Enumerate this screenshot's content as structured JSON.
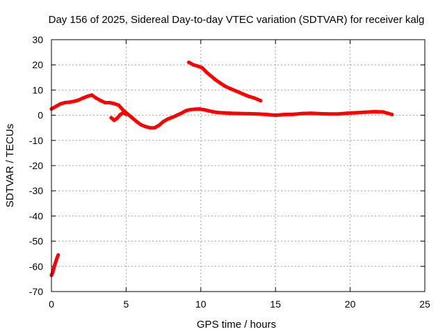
{
  "chart_data": {
    "type": "line",
    "title": "Day 156 of 2025, Sidereal Day-to-day VTEC variation (SDTVAR) for receiver kalg",
    "xlabel": "GPS time / hours",
    "ylabel": "SDTVAR / TECUs",
    "xlim": [
      0,
      25
    ],
    "ylim": [
      -70,
      30
    ],
    "xticks": [
      0,
      5,
      10,
      15,
      20,
      25
    ],
    "yticks": [
      -70,
      -60,
      -50,
      -40,
      -30,
      -20,
      -10,
      0,
      10,
      20,
      30
    ],
    "grid": true,
    "series_color": "#ff0000",
    "series": [
      {
        "name": "early-segment",
        "x": [
          0.0,
          0.08,
          0.15,
          0.22,
          0.3,
          0.38,
          0.45
        ],
        "y": [
          -63.5,
          -62.5,
          -61,
          -59.5,
          -58,
          -56.5,
          -55.5
        ]
      },
      {
        "name": "main-trace",
        "x": [
          0.0,
          0.3,
          0.6,
          0.9,
          1.2,
          1.5,
          1.8,
          2.1,
          2.4,
          2.7,
          3.0,
          3.3,
          3.6,
          3.9,
          4.2,
          4.5,
          4.8,
          5.1,
          5.4,
          5.7,
          6.0,
          6.3,
          6.6,
          6.9,
          7.2,
          7.5,
          7.8,
          8.1,
          8.4,
          8.7,
          9.0,
          9.3,
          9.6,
          9.9,
          10.2,
          10.5,
          10.8,
          11.1,
          11.4,
          12.0,
          12.6,
          13.2,
          13.8,
          14.4,
          15.0,
          15.6,
          16.2,
          16.8,
          17.4,
          18.0,
          18.6,
          19.2,
          19.8,
          20.4,
          21.0,
          21.6,
          22.2,
          22.8
        ],
        "y": [
          2.5,
          3.5,
          4.5,
          5.0,
          5.2,
          5.5,
          6.0,
          6.8,
          7.5,
          8.0,
          6.8,
          5.8,
          5.0,
          5.0,
          4.6,
          4.0,
          2.0,
          0.5,
          -1.0,
          -2.5,
          -3.8,
          -4.5,
          -5.0,
          -5.0,
          -4.0,
          -2.5,
          -1.5,
          -0.8,
          0.0,
          0.8,
          1.8,
          2.2,
          2.4,
          2.5,
          2.2,
          1.8,
          1.4,
          1.1,
          1.0,
          0.8,
          0.7,
          0.6,
          0.5,
          0.3,
          0.0,
          0.3,
          0.4,
          0.7,
          0.8,
          0.6,
          0.5,
          0.5,
          0.8,
          1.0,
          1.2,
          1.4,
          1.3,
          0.3
        ]
      },
      {
        "name": "dip-segment",
        "x": [
          4.0,
          4.2,
          4.4,
          4.6,
          4.8,
          5.0
        ],
        "y": [
          -1.0,
          -2.0,
          -1.2,
          0.2,
          1.0,
          0.4
        ]
      },
      {
        "name": "upper-segment",
        "x": [
          9.2,
          9.5,
          9.8,
          10.1,
          10.4,
          10.7,
          11.0,
          11.3,
          11.6,
          12.0,
          12.4,
          12.8,
          13.2,
          13.6,
          14.0
        ],
        "y": [
          21.0,
          20.0,
          19.5,
          18.8,
          17.0,
          15.5,
          14.0,
          12.8,
          11.6,
          10.5,
          9.5,
          8.5,
          7.5,
          6.8,
          5.8
        ]
      }
    ]
  }
}
